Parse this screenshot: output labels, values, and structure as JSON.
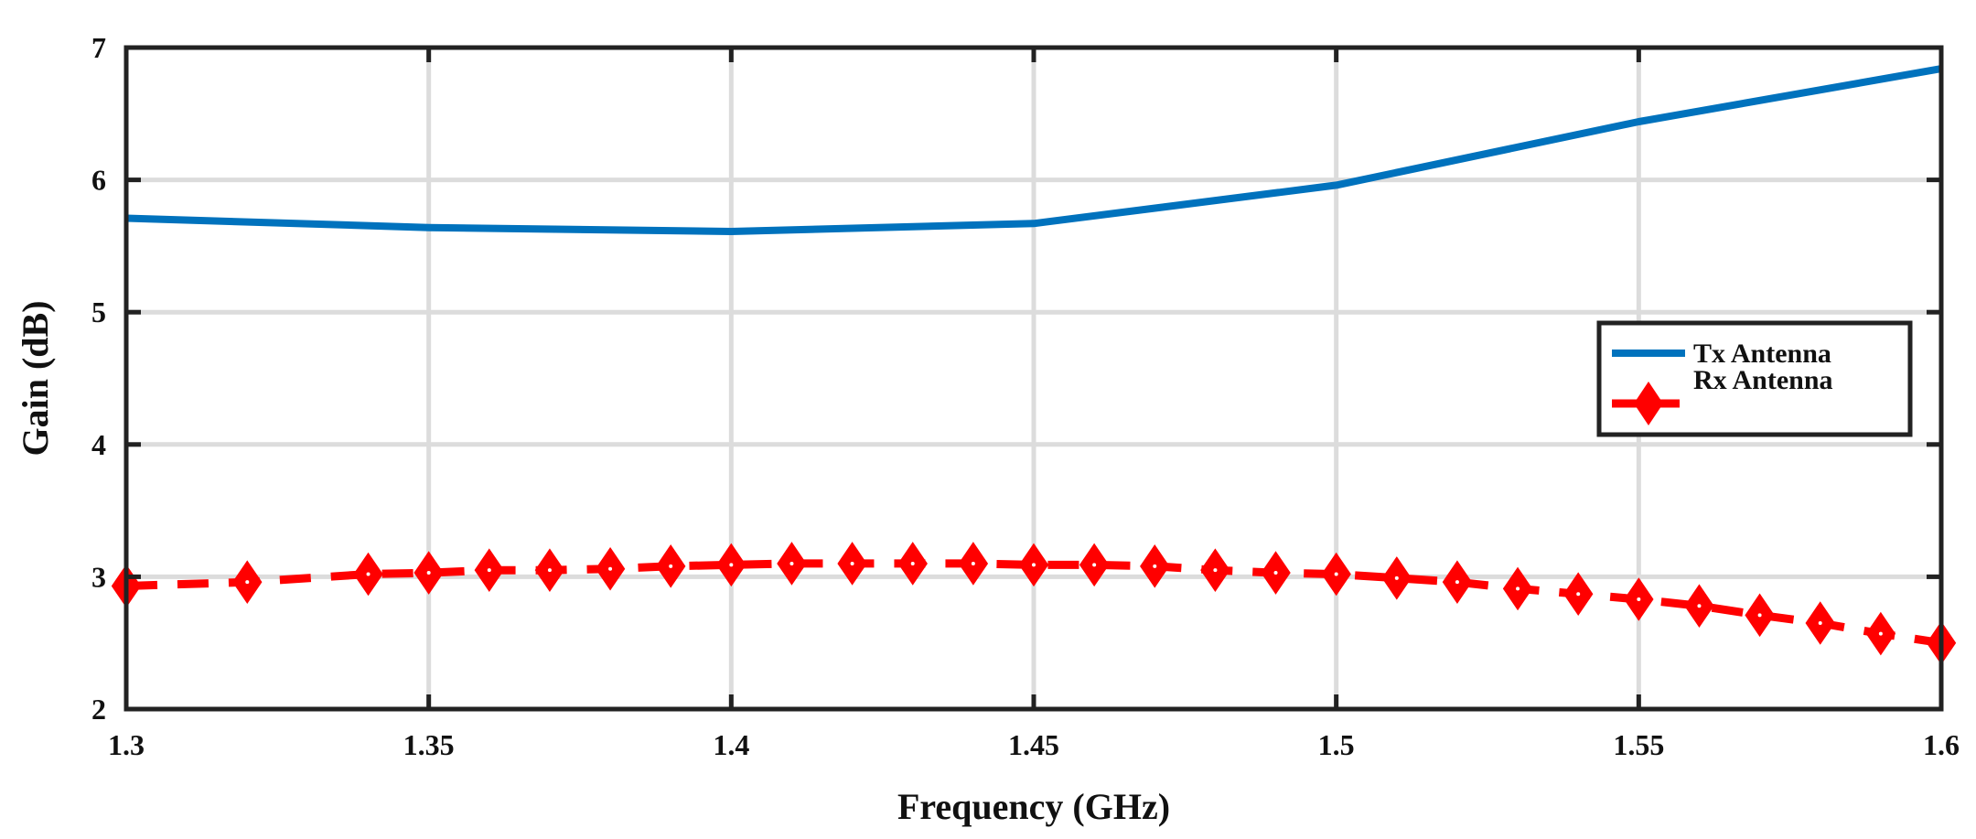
{
  "chart_data": {
    "type": "line",
    "title": "",
    "xlabel": "Frequency (GHz)",
    "ylabel": "Gain (dB)",
    "xlim": [
      1.3,
      1.6
    ],
    "ylim": [
      2,
      7
    ],
    "xticks": [
      1.3,
      1.35,
      1.4,
      1.45,
      1.5,
      1.55,
      1.6
    ],
    "xtick_labels": [
      "1.3",
      "1.35",
      "1.4",
      "1.45",
      "1.5",
      "1.55",
      "1.6"
    ],
    "yticks": [
      2,
      3,
      4,
      5,
      6,
      7
    ],
    "ytick_labels": [
      "2",
      "3",
      "4",
      "5",
      "6",
      "7"
    ],
    "grid": true,
    "legend_position": "right",
    "series": [
      {
        "name": "Tx Antenna",
        "color": "#0072BD",
        "style": "solid",
        "marker": "none",
        "x": [
          1.3,
          1.35,
          1.4,
          1.45,
          1.5,
          1.55,
          1.6
        ],
        "y": [
          5.71,
          5.64,
          5.61,
          5.67,
          5.96,
          6.44,
          6.84
        ]
      },
      {
        "name": "Rx Antenna",
        "color": "#FF0000",
        "style": "dashed",
        "marker": "diamond",
        "x": [
          1.3,
          1.32,
          1.34,
          1.35,
          1.36,
          1.37,
          1.38,
          1.39,
          1.4,
          1.41,
          1.42,
          1.43,
          1.44,
          1.45,
          1.46,
          1.47,
          1.48,
          1.49,
          1.5,
          1.51,
          1.52,
          1.53,
          1.54,
          1.55,
          1.56,
          1.57,
          1.58,
          1.59,
          1.6
        ],
        "y": [
          2.93,
          2.96,
          3.02,
          3.03,
          3.05,
          3.05,
          3.06,
          3.08,
          3.09,
          3.1,
          3.1,
          3.1,
          3.1,
          3.09,
          3.09,
          3.08,
          3.05,
          3.03,
          3.02,
          2.99,
          2.96,
          2.91,
          2.87,
          2.83,
          2.78,
          2.71,
          2.65,
          2.57,
          2.5
        ]
      }
    ]
  }
}
